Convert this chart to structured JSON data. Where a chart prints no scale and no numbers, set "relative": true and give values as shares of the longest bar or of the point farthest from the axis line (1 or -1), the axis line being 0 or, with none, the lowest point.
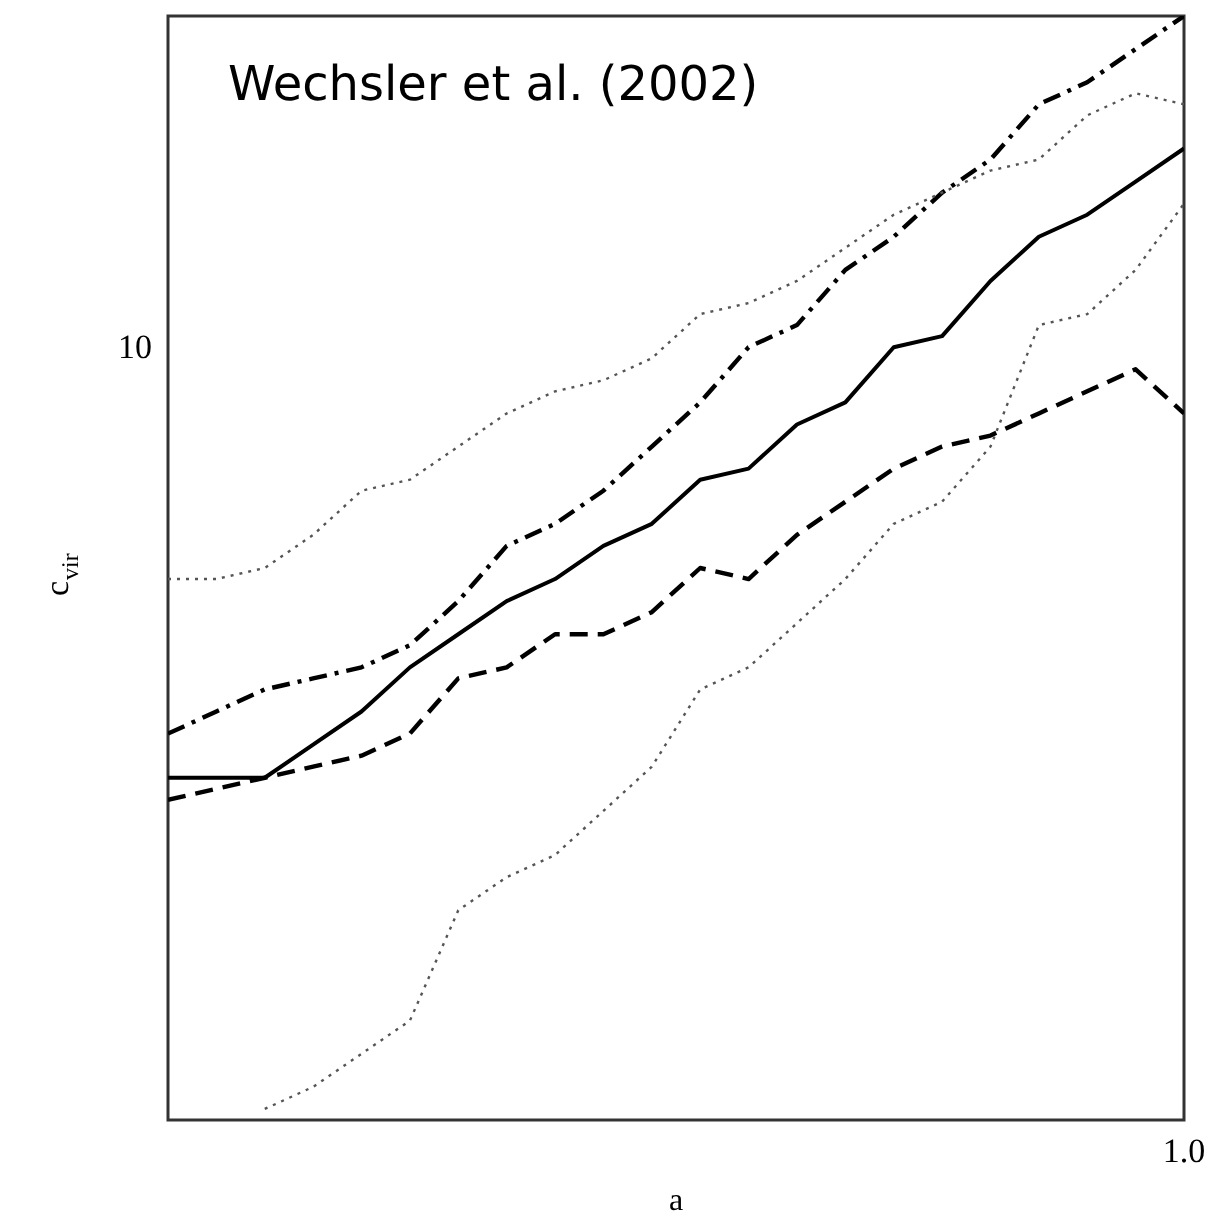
{
  "chart_data": {
    "type": "line",
    "relative": true,
    "xlabel": "a",
    "ylabel": "c$_{vir}$",
    "categories": [
      null,
      null,
      null,
      null,
      null,
      null,
      null,
      null,
      null,
      null,
      null,
      null,
      null,
      null,
      null,
      null,
      null,
      null,
      null,
      null,
      null,
      null
    ],
    "series": [
      {
        "color": "#000000",
        "line_style": "solid",
        "values": [
          0.31,
          0.31,
          0.31,
          0.34,
          0.37,
          0.41,
          0.44,
          0.47,
          0.49,
          0.52,
          0.54,
          0.58,
          0.59,
          0.63,
          0.65,
          0.7,
          0.71,
          0.76,
          0.8,
          0.82,
          0.85,
          0.88
        ]
      },
      {
        "color": "#000000",
        "line_style": "dashdot",
        "values": [
          0.35,
          0.37,
          0.39,
          0.4,
          0.41,
          0.43,
          0.47,
          0.52,
          0.54,
          0.57,
          0.61,
          0.65,
          0.7,
          0.72,
          0.77,
          0.8,
          0.84,
          0.87,
          0.92,
          0.94,
          0.97,
          1
        ]
      },
      {
        "color": "#000000",
        "line_style": "dashed",
        "values": [
          0.29,
          0.3,
          0.31,
          0.32,
          0.33,
          0.35,
          0.4,
          0.41,
          0.44,
          0.44,
          0.46,
          0.5,
          0.49,
          0.53,
          0.56,
          0.59,
          0.61,
          0.62,
          0.64,
          0.66,
          0.68,
          0.64
        ]
      },
      {
        "color": "#555555",
        "line_style": "dotted",
        "values": [
          0.49,
          0.49,
          0.5,
          0.53,
          0.57,
          0.58,
          0.61,
          0.64,
          0.66,
          0.67,
          0.69,
          0.73,
          0.74,
          0.76,
          0.79,
          0.82,
          0.84,
          0.86,
          0.87,
          0.91,
          0.93,
          0.92
        ]
      },
      {
        "color": "#555555",
        "line_style": "dotted",
        "values": [
          null,
          null,
          0.01,
          0.03,
          0.06,
          0.09,
          0.19,
          0.22,
          0.24,
          0.28,
          0.32,
          0.39,
          0.41,
          0.45,
          0.49,
          0.54,
          0.56,
          0.61,
          0.72,
          0.73,
          0.77,
          0.83
        ]
      }
    ],
    "annotations": [
      "Wechsler et al. (2002)",
      "10",
      "1.0"
    ]
  }
}
